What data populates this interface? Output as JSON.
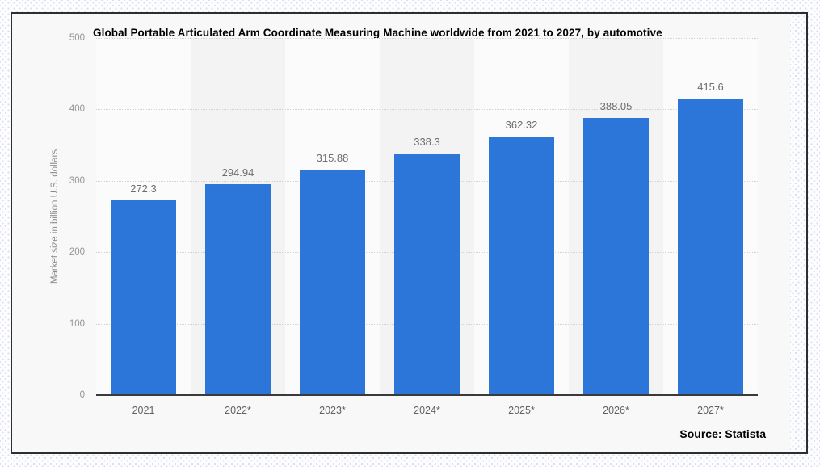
{
  "title": "Global Portable Articulated Arm Coordinate Measuring Machine worldwide from 2021 to 2027, by automotive",
  "y_axis": {
    "label": "Market size in billion U.S. dollars",
    "tick_values": [
      0,
      100,
      200,
      300,
      400,
      500
    ]
  },
  "source_text": "Source: Statista",
  "colors": {
    "bar": "#2c76da",
    "band_even": "#fbfbfc",
    "band_odd": "#f3f3f4",
    "gridline": "#d2d2d2",
    "axis_line": "#3a3a3a"
  },
  "chart_data": {
    "type": "bar",
    "title": "Global Portable Articulated Arm Coordinate Measuring Machine worldwide from 2021 to 2027, by automotive",
    "categories": [
      "2021",
      "2022*",
      "2023*",
      "2024*",
      "2025*",
      "2026*",
      "2027*"
    ],
    "values": [
      272.3,
      294.94,
      315.88,
      338.3,
      362.32,
      388.05,
      415.6
    ],
    "data_labels": [
      "272.3",
      "294.94",
      "315.88",
      "338.3",
      "362.32",
      "388.05",
      "415.6"
    ],
    "xlabel": "",
    "ylabel": "Market size in billion U.S. dollars",
    "ylim": [
      0,
      500
    ],
    "y_ticks": [
      0,
      100,
      200,
      300,
      400,
      500
    ],
    "grid": "horizontal-dotted",
    "legend": "none",
    "source": "Statista"
  }
}
